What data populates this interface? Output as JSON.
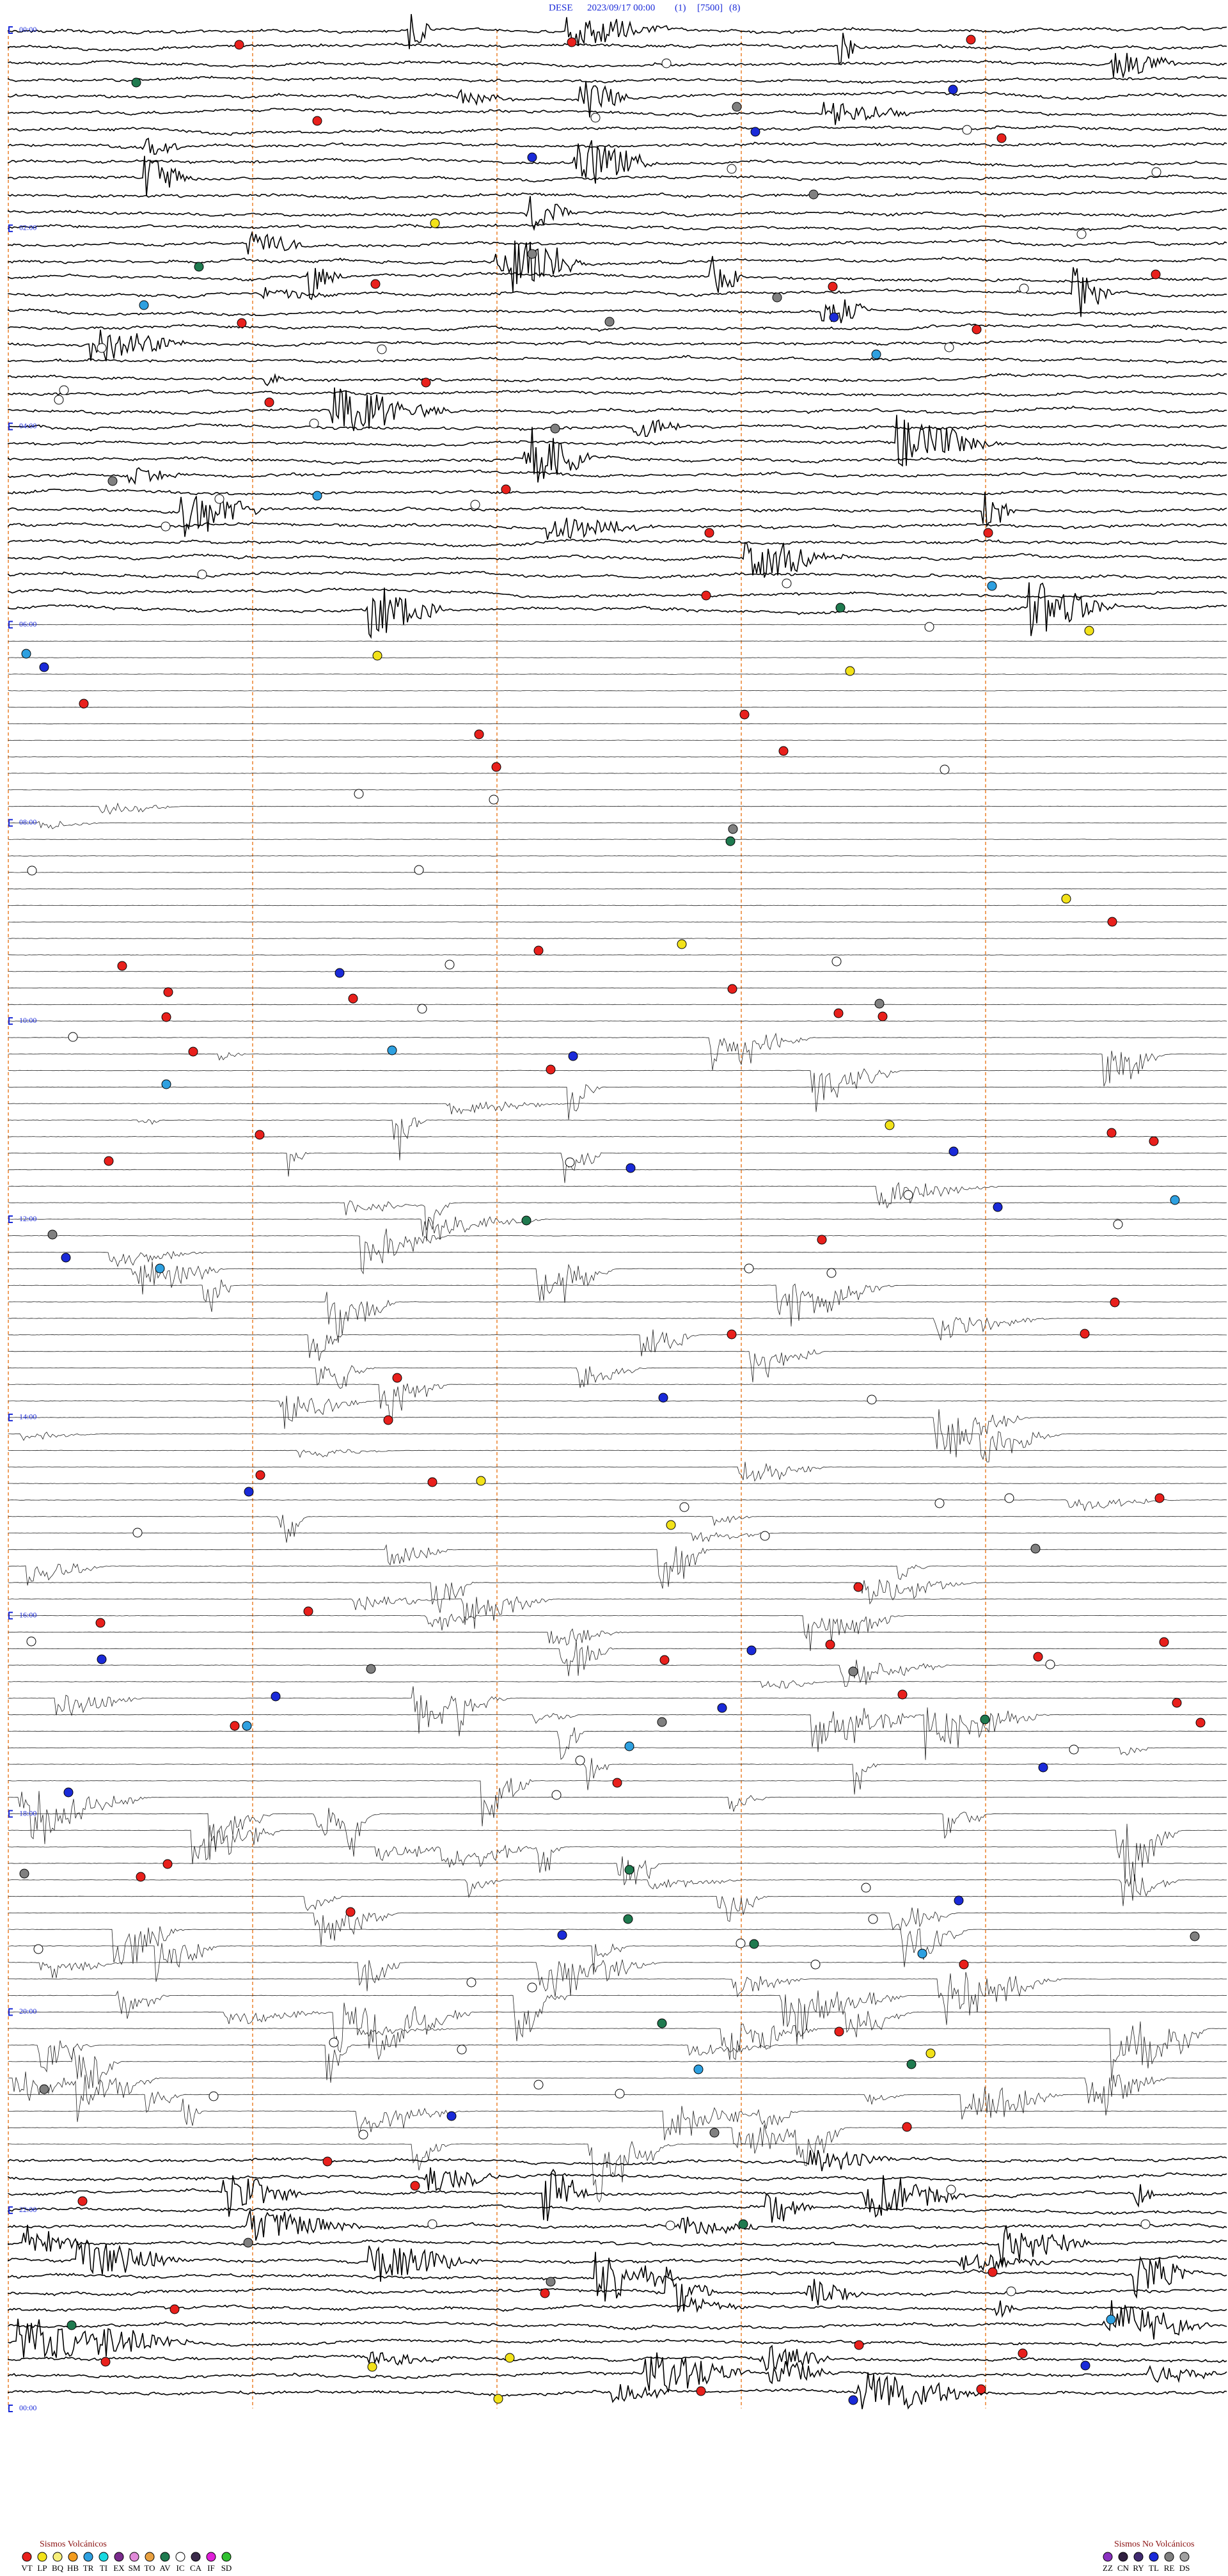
{
  "header": {
    "station": "DESE",
    "datetime": "2023/09/17 00:00",
    "channel": "(1)",
    "scale": "[7500]",
    "filter": "(8)"
  },
  "time_labels": [
    "00:00",
    "02:00",
    "04:00",
    "06:00",
    "08:00",
    "10:00",
    "12:00",
    "14:00",
    "16:00",
    "18:00",
    "20:00",
    "22:00",
    "00:00"
  ],
  "legend_volcanic": {
    "title": "Sismos Volcánicos",
    "items": [
      {
        "label": "VT",
        "color": "#e8201c"
      },
      {
        "label": "LP",
        "color": "#f2e21a"
      },
      {
        "label": "BQ",
        "color": "#f7ef7a"
      },
      {
        "label": "HB",
        "color": "#f39c1f"
      },
      {
        "label": "TR",
        "color": "#2ea0e0"
      },
      {
        "label": "TI",
        "color": "#19d9e0"
      },
      {
        "label": "EX",
        "color": "#7a2a8c"
      },
      {
        "label": "SM",
        "color": "#e08ad8"
      },
      {
        "label": "TO",
        "color": "#e8a040"
      },
      {
        "label": "AV",
        "color": "#1f7a4f"
      },
      {
        "label": "IC",
        "color": "#ffffff"
      },
      {
        "label": "CA",
        "color": "#3a2a4a"
      },
      {
        "label": "IF",
        "color": "#e020d8"
      },
      {
        "label": "SD",
        "color": "#30c030"
      }
    ]
  },
  "legend_non_volcanic": {
    "title": "Sismos No Volcánicos",
    "items": [
      {
        "label": "ZZ",
        "color": "#8a30c0"
      },
      {
        "label": "CN",
        "color": "#302040"
      },
      {
        "label": "RY",
        "color": "#402a70"
      },
      {
        "label": "TL",
        "color": "#1a2ad8"
      },
      {
        "label": "RE",
        "color": "#808080"
      },
      {
        "label": "DS",
        "color": "#a0a0a0"
      }
    ]
  }
}
